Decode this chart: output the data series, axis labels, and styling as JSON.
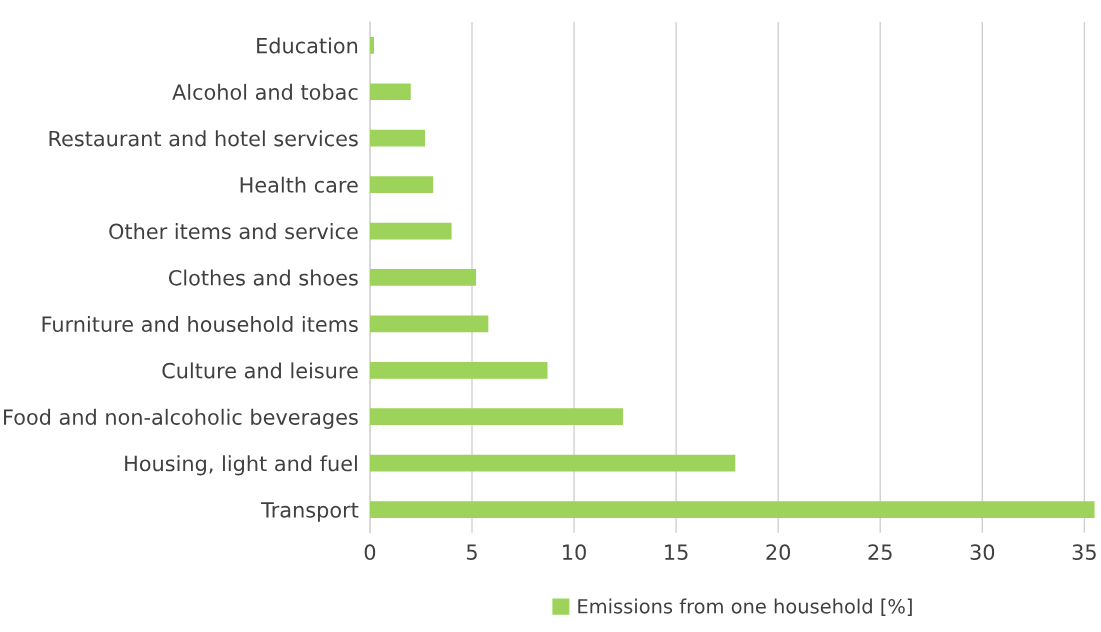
{
  "chart_data": {
    "type": "bar",
    "orientation": "horizontal",
    "categories": [
      "Education",
      "Alcohol and tobac",
      "Restaurant and hotel services",
      "Health care",
      "Other items and service",
      "Clothes and shoes",
      "Furniture and household items",
      "Culture and leisure",
      "Food and non-alcoholic beverages",
      "Housing, light and fuel",
      "Transport"
    ],
    "series": [
      {
        "name": "Emissions from one household [%]",
        "color": "#9dd35a",
        "values": [
          0.2,
          2.0,
          2.7,
          3.1,
          4.0,
          5.2,
          5.8,
          8.7,
          12.4,
          17.9,
          35.5
        ]
      }
    ],
    "xlim": [
      0,
      35.6
    ],
    "xticks": [
      0,
      5,
      10,
      15,
      20,
      25,
      30,
      35
    ],
    "grid": "x",
    "legend": "bottom"
  }
}
